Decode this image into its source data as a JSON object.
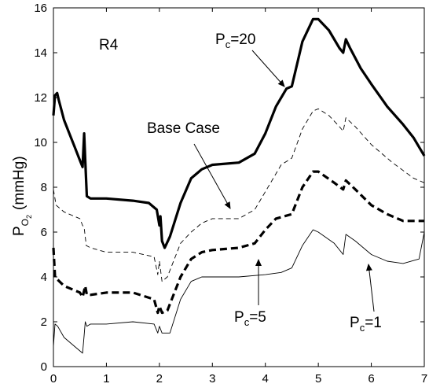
{
  "chart_data": {
    "type": "line",
    "title": "",
    "panel_label": "R4",
    "ylabel": {
      "main": "P",
      "sub": "O",
      "subsub": "2",
      "unit": "(mmHg)"
    },
    "xlabel": "",
    "xlim": [
      0,
      7
    ],
    "ylim": [
      0,
      16
    ],
    "xticks": [
      "0",
      "1",
      "2",
      "3",
      "4",
      "5",
      "6",
      "7"
    ],
    "yticks": [
      "0",
      "2",
      "4",
      "6",
      "8",
      "10",
      "12",
      "14",
      "16"
    ],
    "grid": false,
    "legend": "none",
    "series": [
      {
        "style": "thick-solid",
        "points": [
          [
            0,
            11.2
          ],
          [
            0.03,
            12.1
          ],
          [
            0.07,
            12.2
          ],
          [
            0.1,
            11.9
          ],
          [
            0.2,
            11.0
          ],
          [
            0.3,
            10.4
          ],
          [
            0.4,
            9.8
          ],
          [
            0.5,
            9.2
          ],
          [
            0.55,
            8.9
          ],
          [
            0.58,
            10.4
          ],
          [
            0.6,
            9.2
          ],
          [
            0.63,
            7.6
          ],
          [
            0.7,
            7.5
          ],
          [
            1.0,
            7.5
          ],
          [
            1.5,
            7.4
          ],
          [
            1.8,
            7.3
          ],
          [
            1.95,
            7.0
          ],
          [
            2.0,
            6.3
          ],
          [
            2.02,
            6.7
          ],
          [
            2.05,
            5.6
          ],
          [
            2.1,
            5.3
          ],
          [
            2.2,
            5.8
          ],
          [
            2.4,
            7.3
          ],
          [
            2.6,
            8.4
          ],
          [
            2.8,
            8.8
          ],
          [
            3.0,
            9.0
          ],
          [
            3.5,
            9.1
          ],
          [
            3.8,
            9.5
          ],
          [
            4.0,
            10.4
          ],
          [
            4.2,
            11.6
          ],
          [
            4.4,
            12.4
          ],
          [
            4.5,
            12.5
          ],
          [
            4.7,
            14.5
          ],
          [
            4.9,
            15.5
          ],
          [
            5.0,
            15.5
          ],
          [
            5.2,
            15.0
          ],
          [
            5.4,
            14.2
          ],
          [
            5.47,
            14.0
          ],
          [
            5.52,
            14.6
          ],
          [
            5.6,
            14.2
          ],
          [
            5.8,
            13.3
          ],
          [
            6.0,
            12.6
          ],
          [
            6.3,
            11.6
          ],
          [
            6.6,
            10.8
          ],
          [
            6.8,
            10.2
          ],
          [
            7.0,
            9.4
          ]
        ]
      },
      {
        "style": "thin-dashed",
        "points": [
          [
            0,
            7.9
          ],
          [
            0.05,
            7.2
          ],
          [
            0.2,
            6.9
          ],
          [
            0.5,
            6.6
          ],
          [
            0.55,
            6.3
          ],
          [
            0.58,
            6.2
          ],
          [
            0.62,
            5.4
          ],
          [
            0.7,
            5.3
          ],
          [
            1.0,
            5.1
          ],
          [
            1.5,
            5.1
          ],
          [
            1.9,
            4.9
          ],
          [
            1.97,
            4.1
          ],
          [
            2.0,
            4.7
          ],
          [
            2.05,
            3.8
          ],
          [
            2.15,
            4.0
          ],
          [
            2.4,
            5.5
          ],
          [
            2.6,
            6.0
          ],
          [
            2.8,
            6.4
          ],
          [
            3.0,
            6.6
          ],
          [
            3.5,
            6.6
          ],
          [
            3.8,
            7.0
          ],
          [
            4.0,
            7.8
          ],
          [
            4.3,
            9.0
          ],
          [
            4.5,
            9.3
          ],
          [
            4.7,
            10.6
          ],
          [
            4.9,
            11.4
          ],
          [
            5.0,
            11.5
          ],
          [
            5.2,
            11.2
          ],
          [
            5.4,
            10.7
          ],
          [
            5.47,
            10.5
          ],
          [
            5.52,
            11.1
          ],
          [
            5.7,
            10.7
          ],
          [
            6.0,
            9.9
          ],
          [
            6.4,
            9.1
          ],
          [
            6.8,
            8.4
          ],
          [
            7.0,
            8.2
          ]
        ]
      },
      {
        "style": "thick-dashed",
        "points": [
          [
            0,
            5.3
          ],
          [
            0.03,
            4.0
          ],
          [
            0.07,
            3.9
          ],
          [
            0.2,
            3.6
          ],
          [
            0.5,
            3.3
          ],
          [
            0.55,
            3.1
          ],
          [
            0.6,
            3.6
          ],
          [
            0.63,
            3.2
          ],
          [
            0.7,
            3.2
          ],
          [
            1.0,
            3.3
          ],
          [
            1.5,
            3.3
          ],
          [
            1.9,
            3.0
          ],
          [
            1.97,
            2.4
          ],
          [
            2.0,
            2.7
          ],
          [
            2.05,
            2.4
          ],
          [
            2.15,
            2.5
          ],
          [
            2.4,
            4.0
          ],
          [
            2.6,
            4.8
          ],
          [
            2.8,
            5.1
          ],
          [
            3.0,
            5.2
          ],
          [
            3.5,
            5.3
          ],
          [
            3.8,
            5.5
          ],
          [
            4.0,
            6.1
          ],
          [
            4.2,
            6.6
          ],
          [
            4.5,
            6.8
          ],
          [
            4.7,
            8.0
          ],
          [
            4.9,
            8.7
          ],
          [
            5.0,
            8.7
          ],
          [
            5.3,
            8.2
          ],
          [
            5.47,
            7.9
          ],
          [
            5.52,
            8.3
          ],
          [
            5.7,
            7.9
          ],
          [
            6.0,
            7.2
          ],
          [
            6.3,
            6.8
          ],
          [
            6.6,
            6.5
          ],
          [
            7.0,
            6.5
          ]
        ]
      },
      {
        "style": "thin-solid",
        "points": [
          [
            0,
            0.9
          ],
          [
            0.03,
            1.9
          ],
          [
            0.08,
            1.8
          ],
          [
            0.2,
            1.3
          ],
          [
            0.4,
            0.9
          ],
          [
            0.55,
            0.6
          ],
          [
            0.58,
            1.4
          ],
          [
            0.6,
            2.0
          ],
          [
            0.63,
            1.8
          ],
          [
            0.7,
            1.9
          ],
          [
            1.0,
            1.9
          ],
          [
            1.5,
            2.0
          ],
          [
            1.9,
            1.9
          ],
          [
            1.97,
            1.5
          ],
          [
            2.0,
            1.8
          ],
          [
            2.05,
            1.5
          ],
          [
            2.2,
            1.5
          ],
          [
            2.4,
            3.0
          ],
          [
            2.6,
            3.8
          ],
          [
            2.8,
            4.0
          ],
          [
            3.0,
            4.0
          ],
          [
            3.5,
            4.0
          ],
          [
            4.0,
            4.1
          ],
          [
            4.3,
            4.2
          ],
          [
            4.5,
            4.4
          ],
          [
            4.7,
            5.4
          ],
          [
            4.9,
            6.1
          ],
          [
            5.0,
            6.0
          ],
          [
            5.3,
            5.5
          ],
          [
            5.47,
            5.0
          ],
          [
            5.52,
            5.9
          ],
          [
            5.7,
            5.6
          ],
          [
            6.0,
            5.0
          ],
          [
            6.3,
            4.7
          ],
          [
            6.6,
            4.6
          ],
          [
            6.9,
            4.8
          ],
          [
            7.0,
            6.0
          ]
        ]
      }
    ],
    "annotations": [
      {
        "id": "pc20",
        "main": "P",
        "sub": "c",
        "rest": "=20"
      },
      {
        "id": "base",
        "text": "Base Case"
      },
      {
        "id": "pc5",
        "main": "P",
        "sub": "c",
        "rest": "=5"
      },
      {
        "id": "pc1",
        "main": "P",
        "sub": "c",
        "rest": "=1"
      }
    ]
  }
}
